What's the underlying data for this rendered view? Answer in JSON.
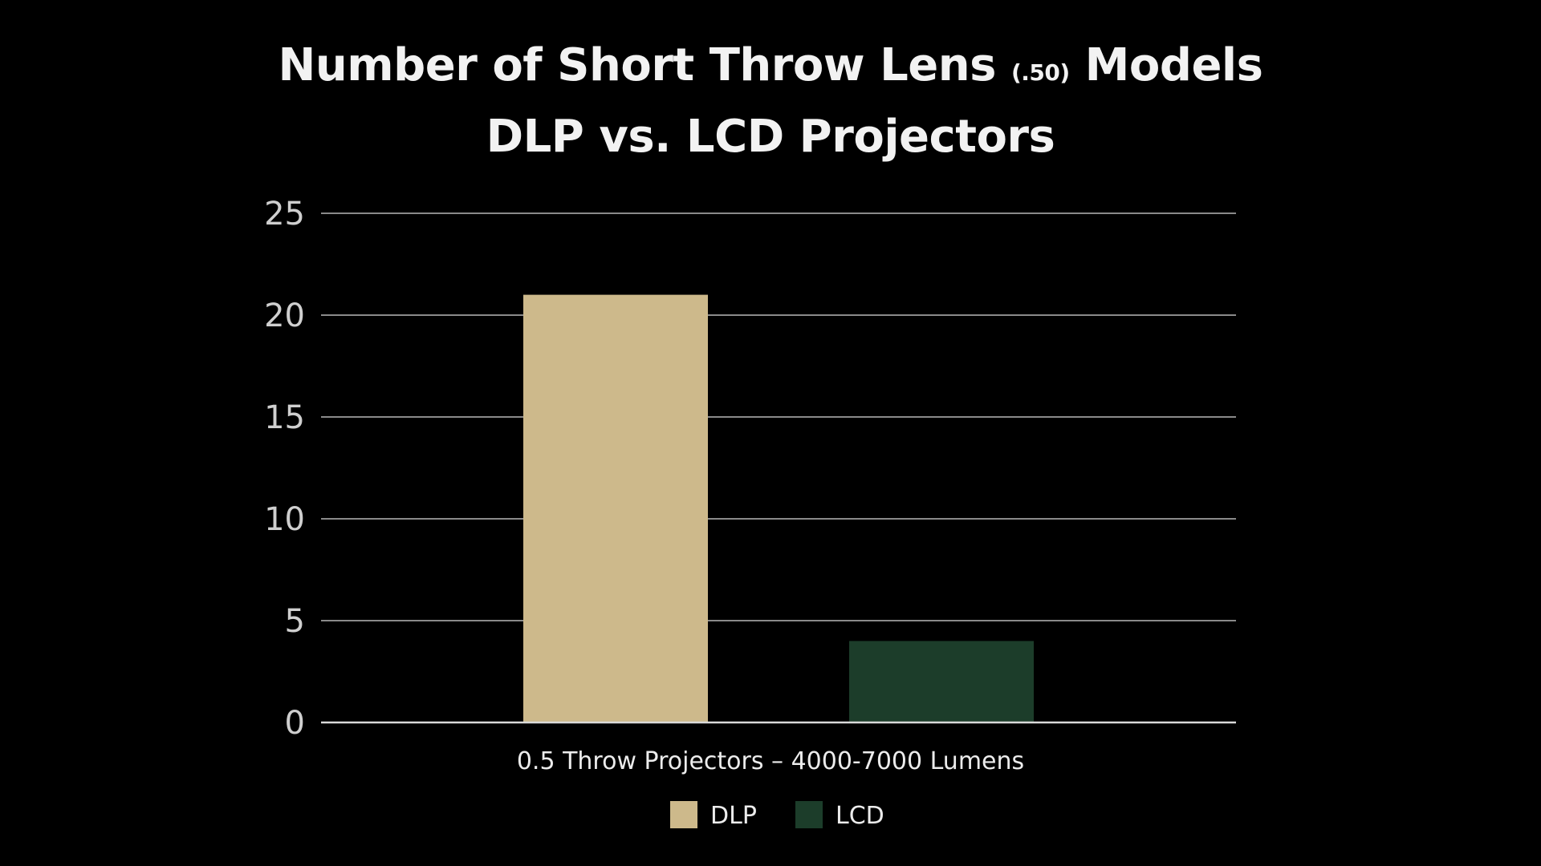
{
  "chart_data": {
    "type": "bar",
    "title": {
      "prefix": "Number of Short Throw Lens ",
      "small": "(.50)",
      "suffix": " Models",
      "line2": "DLP vs. LCD Projectors"
    },
    "categories": [
      "0.5 Throw Projectors – 4000-7000 Lumens"
    ],
    "series": [
      {
        "name": "DLP",
        "values": [
          21
        ],
        "color": "#cdb98b"
      },
      {
        "name": "LCD",
        "values": [
          4
        ],
        "color": "#1c3d2a"
      }
    ],
    "ylim": [
      0,
      25
    ],
    "yticks": [
      0,
      5,
      10,
      15,
      20,
      25
    ],
    "grid": true,
    "legend": "bottom-center",
    "gridColor": "#8a8a8a",
    "axisColor": "#d9d9d9"
  }
}
